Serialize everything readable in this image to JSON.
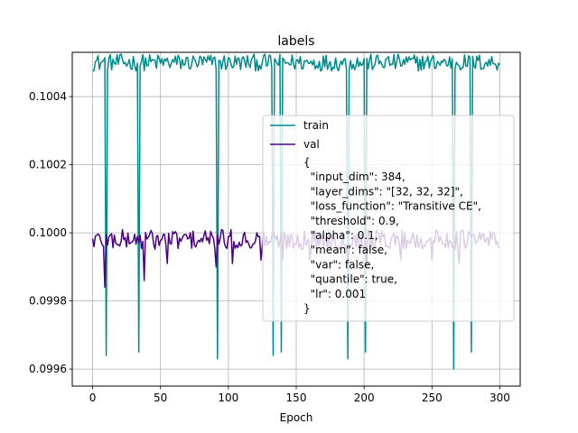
{
  "chart_data": {
    "type": "line",
    "title": "labels",
    "xlabel": "Epoch",
    "ylabel": "",
    "xlim": [
      -15,
      315
    ],
    "ylim": [
      0.09955,
      0.10053
    ],
    "xticks": [
      0,
      50,
      100,
      150,
      200,
      250,
      300
    ],
    "yticks": [
      0.0996,
      0.0998,
      0.1,
      0.1002,
      0.1004
    ],
    "ytick_labels": [
      "0.0996",
      "0.0998",
      "0.1000",
      "0.1002",
      "0.1004"
    ],
    "grid": true,
    "legend_placement": "center-right",
    "legend_annotation": [
      "{",
      "  \"input_dim\": 384,",
      "  \"layer_dims\": \"[32, 32, 32]\",",
      "  \"loss_function\": \"Transitive CE\",",
      "  \"threshold\": 0.9,",
      "  \"alpha\": 0.1,",
      "  \"mean\": false,",
      "  \"var\": false,",
      "  \"quantile\": true,",
      "  \"lr\": 0.001",
      "}"
    ],
    "series": [
      {
        "name": "train",
        "color": "#008b8b",
        "x_start": 0,
        "x_end": 300,
        "base": 0.1005,
        "jitter": 2.5e-05,
        "dips": [
          {
            "x": 10,
            "y": 0.09964
          },
          {
            "x": 34,
            "y": 0.09965
          },
          {
            "x": 92,
            "y": 0.09963
          },
          {
            "x": 133,
            "y": 0.09964
          },
          {
            "x": 139,
            "y": 0.09965
          },
          {
            "x": 188,
            "y": 0.09963
          },
          {
            "x": 201,
            "y": 0.09965
          },
          {
            "x": 266,
            "y": 0.0996
          },
          {
            "x": 279,
            "y": 0.09965
          }
        ]
      },
      {
        "name": "val",
        "color": "#4b0082",
        "x_start": 0,
        "x_end": 300,
        "base": 0.09998,
        "jitter": 3e-05,
        "dips": [
          {
            "x": 9,
            "y": 0.09984
          },
          {
            "x": 38,
            "y": 0.09986
          },
          {
            "x": 55,
            "y": 0.09991
          },
          {
            "x": 91,
            "y": 0.0999
          },
          {
            "x": 103,
            "y": 0.09991
          },
          {
            "x": 124,
            "y": 0.09992
          },
          {
            "x": 140,
            "y": 0.09992
          },
          {
            "x": 160,
            "y": 0.09992
          },
          {
            "x": 188,
            "y": 0.09991
          },
          {
            "x": 202,
            "y": 0.0999
          },
          {
            "x": 227,
            "y": 0.09992
          },
          {
            "x": 250,
            "y": 0.09992
          },
          {
            "x": 270,
            "y": 0.09991
          }
        ]
      }
    ]
  }
}
